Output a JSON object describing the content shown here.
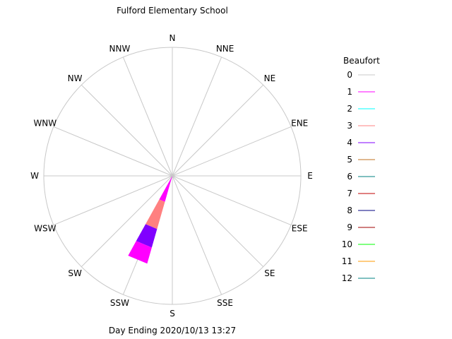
{
  "chart_data": {
    "type": "wind-rose",
    "title": "Fulford Elementary School",
    "footer": "Day Ending 2020/10/13 13:27",
    "directions": [
      "N",
      "NNE",
      "NE",
      "ENE",
      "E",
      "ESE",
      "SE",
      "SSE",
      "S",
      "SSW",
      "SW",
      "WSW",
      "W",
      "WNW",
      "NW",
      "NNW"
    ],
    "legend": {
      "title": "Beaufort",
      "items": [
        {
          "label": "0",
          "color": "#c8c8c8"
        },
        {
          "label": "1",
          "color": "#ff00ff"
        },
        {
          "label": "2",
          "color": "#00ffff"
        },
        {
          "label": "3",
          "color": "#ff8080"
        },
        {
          "label": "4",
          "color": "#8000ff"
        },
        {
          "label": "5",
          "color": "#c07020"
        },
        {
          "label": "6",
          "color": "#008080"
        },
        {
          "label": "7",
          "color": "#c00000"
        },
        {
          "label": "8",
          "color": "#000080"
        },
        {
          "label": "9",
          "color": "#a00000"
        },
        {
          "label": "10",
          "color": "#00ff00"
        },
        {
          "label": "11",
          "color": "#ff9900"
        },
        {
          "label": "12",
          "color": "#008080"
        }
      ]
    },
    "frequency_scale_max": 1.0,
    "petals": [
      {
        "direction": "S",
        "bands": [
          {
            "beaufort": "1",
            "from": 0.0,
            "to": 0.0
          },
          {
            "beaufort": "4",
            "from": 0.0,
            "to": 0.0
          }
        ]
      },
      {
        "direction": "SSW",
        "bands": [
          {
            "beaufort": "2",
            "from": 0.0,
            "to": 0.0
          },
          {
            "beaufort": "1",
            "from": 0.0,
            "to": 0.21
          },
          {
            "beaufort": "3",
            "from": 0.21,
            "to": 0.43
          },
          {
            "beaufort": "4",
            "from": 0.43,
            "to": 0.58
          },
          {
            "beaufort": "1",
            "from": 0.58,
            "to": 0.71
          }
        ]
      },
      {
        "direction": "SW",
        "bands": [
          {
            "beaufort": "2",
            "from": 0.0,
            "to": 0.0
          },
          {
            "beaufort": "3",
            "from": 0.0,
            "to": 0.0
          },
          {
            "beaufort": "4",
            "from": 0.0,
            "to": 0.0
          }
        ]
      },
      {
        "direction": "WSW",
        "bands": [
          {
            "beaufort": "2",
            "from": 0.0,
            "to": 0.0
          }
        ]
      }
    ]
  }
}
